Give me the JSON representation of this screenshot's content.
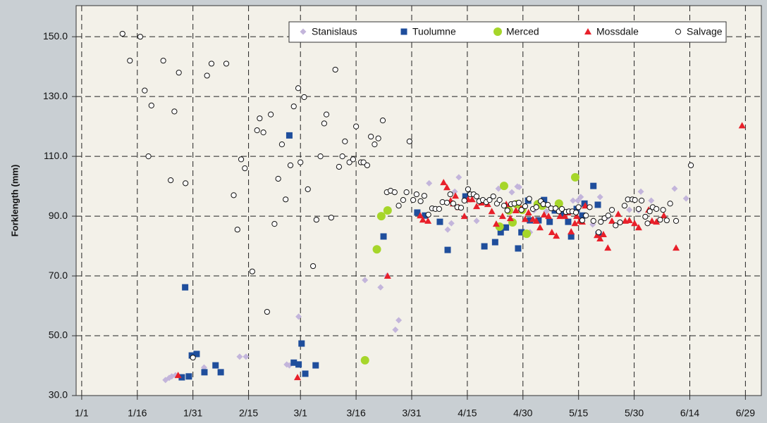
{
  "chart_data": {
    "type": "scatter",
    "ylabel": "Forklength (mm)",
    "xlim": [
      -1.5,
      183.3
    ],
    "ylim": [
      30,
      160.4
    ],
    "xticks": [
      {
        "value": 0,
        "label": "1/1"
      },
      {
        "value": 15,
        "label": "1/16"
      },
      {
        "value": 30,
        "label": "1/31"
      },
      {
        "value": 45,
        "label": "2/15"
      },
      {
        "value": 59,
        "label": "3/1"
      },
      {
        "value": 74,
        "label": "3/16"
      },
      {
        "value": 89,
        "label": "3/31"
      },
      {
        "value": 104,
        "label": "4/15"
      },
      {
        "value": 119,
        "label": "4/30"
      },
      {
        "value": 134,
        "label": "5/15"
      },
      {
        "value": 149,
        "label": "5/30"
      },
      {
        "value": 164,
        "label": "6/14"
      },
      {
        "value": 179,
        "label": "6/29"
      }
    ],
    "yticks": [
      {
        "value": 30,
        "label": "30.0"
      },
      {
        "value": 50,
        "label": "50.0"
      },
      {
        "value": 70,
        "label": "70.0"
      },
      {
        "value": 90,
        "label": "90.0"
      },
      {
        "value": 110,
        "label": "110.0"
      },
      {
        "value": 130,
        "label": "130.0"
      },
      {
        "value": 150,
        "label": "150.0"
      }
    ],
    "grid": true,
    "legend": "top-right",
    "series": [
      {
        "name": "Stanislaus",
        "color": "#c3b5db",
        "marker": "diamond",
        "x": [
          22.6,
          23.6,
          24.3,
          25.3,
          33,
          42.6,
          44.3,
          55.3,
          56,
          58.5,
          76.4,
          80.6,
          82.3,
          84.6,
          85.5,
          93.7,
          98.7,
          99.7,
          100.6,
          101.7,
          106.5,
          112.4,
          116,
          117.5,
          118,
          120.9,
          122,
          125.3,
          132.5,
          133.8,
          134.6,
          137.8,
          139.8,
          141.9,
          147.7,
          150.2,
          150.8,
          153.6,
          159.9,
          163
        ],
        "values": [
          35.2,
          35.9,
          36.4,
          36.8,
          39.4,
          43,
          43,
          40.4,
          40.1,
          56.4,
          68.6,
          66.2,
          70,
          52,
          55.2,
          101,
          85.5,
          87.6,
          98.2,
          103,
          88.4,
          99.2,
          98,
          99.9,
          99.7,
          84.6,
          91.9,
          91.6,
          95.2,
          95.2,
          96.4,
          87.2,
          96.4,
          89.8,
          92.1,
          91.9,
          98.2,
          95.2,
          99.2,
          95.9
        ]
      },
      {
        "name": "Tuolumne",
        "color": "#1f4e9c",
        "marker": "square",
        "x": [
          27,
          27.9,
          28.9,
          29.7,
          31,
          33.1,
          36.1,
          37.5,
          56,
          57.2,
          58.5,
          59.3,
          60.3,
          63.1,
          81.4,
          90.5,
          92.6,
          96.6,
          98.7,
          103.5,
          108.6,
          111.5,
          113,
          114.4,
          117.7,
          118.6,
          120.4,
          120.9,
          123.2,
          124.7,
          126.2,
          127.6,
          129.5,
          131.2,
          132,
          133.5,
          135,
          135.6,
          138,
          139.2,
          139.4
        ],
        "values": [
          36.1,
          66.2,
          36.4,
          43.4,
          43.9,
          37.8,
          40.1,
          37.8,
          117,
          41,
          40.4,
          47.4,
          37.3,
          40.1,
          83.2,
          91.2,
          90.2,
          88.1,
          78.7,
          96.6,
          79.9,
          81.3,
          84.6,
          86.2,
          79.2,
          84.6,
          95.2,
          88.6,
          88.6,
          95.4,
          88.1,
          91.9,
          90.7,
          88.1,
          83.2,
          92.4,
          90.2,
          94.2,
          100.1,
          93.8,
          83.9
        ]
      },
      {
        "name": "Merced",
        "color": "#a6d62a",
        "marker": "circle",
        "x": [
          76.4,
          79.6,
          80.8,
          82.5,
          112.7,
          113.9,
          115.2,
          116.2,
          117.3,
          118.8,
          120,
          123,
          124.2,
          128.7,
          133.1
        ],
        "values": [
          41.8,
          78.9,
          90,
          91.9,
          86.5,
          100.1,
          91.9,
          87.9,
          94,
          92.1,
          84.1,
          94,
          93.5,
          94.2,
          103
        ]
      },
      {
        "name": "Mossdale",
        "color": "#e8202a",
        "marker": "triangle",
        "x": [
          26,
          58.2,
          82.5,
          91.3,
          92,
          93.4,
          97.6,
          98.5,
          99.5,
          100.2,
          100.8,
          101.7,
          103.2,
          104.2,
          105.3,
          106.5,
          107.8,
          109.5,
          110.6,
          111.8,
          113.5,
          114.5,
          115.6,
          117.1,
          118.5,
          119.6,
          120.5,
          121.7,
          122.6,
          123.6,
          124.7,
          125.9,
          126.8,
          128,
          129,
          130.3,
          131.1,
          132,
          133,
          133.5,
          134.3,
          135,
          135.8,
          139,
          139.8,
          140.7,
          141.9,
          143,
          144.7,
          146.6,
          147.7,
          149.1,
          150.2,
          152.9,
          153.8,
          155,
          157,
          160.3,
          178.1
        ],
        "values": [
          36.8,
          36.1,
          70,
          90.2,
          88.8,
          88.4,
          101.3,
          99.6,
          95.2,
          94.2,
          96.8,
          93,
          90,
          95.6,
          95.6,
          93.3,
          94.5,
          94,
          91.6,
          87.4,
          90,
          94,
          89.3,
          91.9,
          92.6,
          89,
          91.2,
          89,
          88.4,
          86.2,
          90.5,
          90,
          84.6,
          83.4,
          90,
          90,
          91.2,
          84.8,
          87.6,
          90,
          88.4,
          88.1,
          93.5,
          83.6,
          82.5,
          83.9,
          79.4,
          88.4,
          90.7,
          88.4,
          88.6,
          87.6,
          86.2,
          92.1,
          88.4,
          88.1,
          90.2,
          79.4,
          120.3
        ]
      },
      {
        "name": "Salvage",
        "color": "#111111",
        "marker": "open-circle",
        "x": [
          11,
          13,
          15.8,
          17,
          18.8,
          18,
          22,
          24,
          25,
          26.2,
          28,
          30,
          33.8,
          35,
          39,
          41,
          42,
          43,
          44,
          46,
          47.3,
          48,
          49,
          50,
          51,
          52,
          53,
          54,
          55,
          56.3,
          57.2,
          58.4,
          59,
          60,
          61,
          62.4,
          63.3,
          64.4,
          65.4,
          66,
          67.3,
          68.4,
          69.4,
          70.3,
          71,
          72.2,
          73.2,
          74,
          75.3,
          76,
          77,
          78,
          79,
          80,
          81.2,
          82.3,
          83.3,
          84.4,
          85.5,
          86.7,
          87.6,
          88.4,
          89.4,
          90.3,
          91.4,
          92.4,
          93.5,
          94.5,
          95.4,
          96.4,
          97.3,
          98.5,
          99.4,
          100.2,
          101.3,
          102.3,
          103.2,
          104.2,
          104.8,
          105.7,
          106.5,
          107.2,
          108.2,
          109.1,
          110,
          111,
          112,
          112.7,
          113.9,
          114.8,
          115.8,
          116.7,
          117.9,
          118.6,
          119.6,
          120.7,
          121.7,
          122.6,
          123.8,
          124.5,
          125.7,
          126.6,
          127.8,
          128.7,
          129.5,
          130.6,
          131.4,
          132.3,
          133.3,
          134,
          135,
          136,
          137,
          138,
          139.4,
          140,
          141,
          142,
          143,
          144,
          145.2,
          146.4,
          147.3,
          148.5,
          149.2,
          150.2,
          151,
          152,
          152.6,
          153.2,
          154,
          155,
          156,
          156.8,
          157.8,
          158.7,
          160.3,
          164.3
        ],
        "values": [
          151,
          142,
          150,
          132,
          127,
          110,
          142,
          102,
          125,
          138,
          101,
          42.7,
          137,
          141,
          141,
          97,
          85.5,
          109,
          106,
          71.5,
          118.7,
          122.7,
          118,
          58,
          124,
          87.4,
          102.5,
          114,
          95.6,
          107,
          126.7,
          132.8,
          108,
          129.8,
          99,
          73.3,
          88.8,
          110,
          121,
          124,
          89.5,
          139,
          106.5,
          110,
          115,
          108,
          109,
          120,
          108,
          108,
          107,
          116.6,
          114,
          116,
          122,
          98,
          98.5,
          98,
          93.5,
          95.4,
          98,
          115,
          95.4,
          97.3,
          95,
          96.8,
          90.5,
          92.6,
          92.4,
          92.4,
          94.7,
          94.5,
          97.3,
          94.2,
          93,
          92.8,
          95.2,
          99,
          97.3,
          97.3,
          96.6,
          95,
          95.4,
          94.7,
          95.4,
          96.6,
          94.2,
          95.4,
          93.5,
          91.9,
          94,
          94.2,
          94.5,
          92.1,
          93.3,
          95.8,
          92.4,
          93,
          95,
          94,
          93.8,
          92.6,
          92.6,
          91.6,
          92.4,
          91.4,
          91.6,
          91.6,
          91.2,
          93,
          88.6,
          90.2,
          93,
          88.4,
          84.6,
          88.1,
          89.3,
          90.2,
          92.1,
          86.9,
          87.9,
          93.5,
          95.6,
          95.6,
          95.4,
          92.4,
          95.2,
          89.8,
          87.6,
          91.6,
          93,
          92.4,
          88.8,
          92.1,
          88.6,
          94.2,
          88.4,
          107
        ]
      }
    ]
  }
}
